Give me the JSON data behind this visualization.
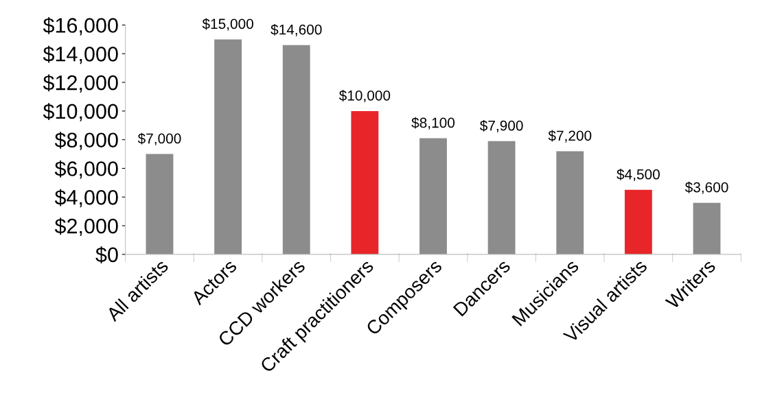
{
  "chart_data": {
    "type": "bar",
    "categories": [
      "All artists",
      "Actors",
      "CCD workers",
      "Craft practitioners",
      "Composers",
      "Dancers",
      "Musicians",
      "Visual artists",
      "Writers"
    ],
    "values": [
      7000,
      15000,
      14600,
      10000,
      8100,
      7900,
      7200,
      4500,
      3600
    ],
    "colors": [
      "#8c8c8c",
      "#8c8c8c",
      "#8c8c8c",
      "#e8262a",
      "#8c8c8c",
      "#8c8c8c",
      "#8c8c8c",
      "#e8262a",
      "#8c8c8c"
    ],
    "value_labels": [
      "$7,000",
      "$15,000",
      "$14,600",
      "$10,000",
      "$8,100",
      "$7,900",
      "$7,200",
      "$4,500",
      "$3,600"
    ],
    "ylim": [
      0,
      16000
    ],
    "yticks": [
      {
        "value": 0,
        "label": "$0"
      },
      {
        "value": 2000,
        "label": "$2,000"
      },
      {
        "value": 4000,
        "label": "$4,000"
      },
      {
        "value": 6000,
        "label": "$6,000"
      },
      {
        "value": 8000,
        "label": "$8,000"
      },
      {
        "value": 10000,
        "label": "$10,000"
      },
      {
        "value": 12000,
        "label": "$12,000"
      },
      {
        "value": 14000,
        "label": "$14,000"
      },
      {
        "value": 16000,
        "label": "$16,000"
      }
    ],
    "grid": false,
    "legend": false
  }
}
